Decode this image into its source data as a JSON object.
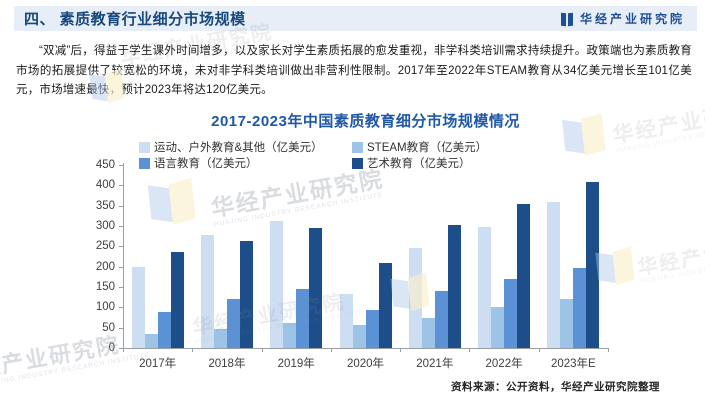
{
  "header": {
    "title": "四、 素质教育行业细分市场规模",
    "logo_text": "华经产业研究院"
  },
  "paragraph": "“双减”后，得益于学生课外时间增多，以及家长对学生素质拓展的愈发重视，非学科类培训需求持续提升。政策端也为素质教育市场的拓展提供了较宽松的环境，未对非学科类培训做出非营利性限制。2017年至2022年STEAM教育从34亿美元增长至101亿美元，市场增速最快，预计2023年将达120亿美元。",
  "chart_data": {
    "type": "bar",
    "title": "2017-2023年中国素质教育细分市场规模情况",
    "categories": [
      "2017年",
      "2018年",
      "2019年",
      "2020年",
      "2021年",
      "2022年",
      "2023年E"
    ],
    "series": [
      {
        "name": "运动、户外教育&其他（亿美元）",
        "color": "#cdddf2",
        "values": [
          200,
          277,
          313,
          133,
          245,
          298,
          360
        ]
      },
      {
        "name": "STEAM教育（亿美元）",
        "color": "#9dc3e6",
        "values": [
          34,
          46,
          61,
          56,
          73,
          101,
          120
        ]
      },
      {
        "name": "语言教育（亿美元）",
        "color": "#5b92d5",
        "values": [
          88,
          120,
          146,
          93,
          140,
          170,
          196
        ]
      },
      {
        "name": "艺术教育（亿美元）",
        "color": "#1d4e89",
        "values": [
          236,
          263,
          294,
          208,
          303,
          353,
          408
        ]
      }
    ],
    "xlabel": "",
    "ylabel": "",
    "ylim": [
      0,
      450
    ],
    "ytick_step": 50,
    "grid": false,
    "legend_position": "top"
  },
  "source": "资料来源：公开资料，华经产业研究院整理",
  "watermark": {
    "text": "华经产业研究院",
    "text_partial": "经产业研究院",
    "subtext": "HUAJING INDUSTRY RESEARCH INSTITUTE"
  }
}
